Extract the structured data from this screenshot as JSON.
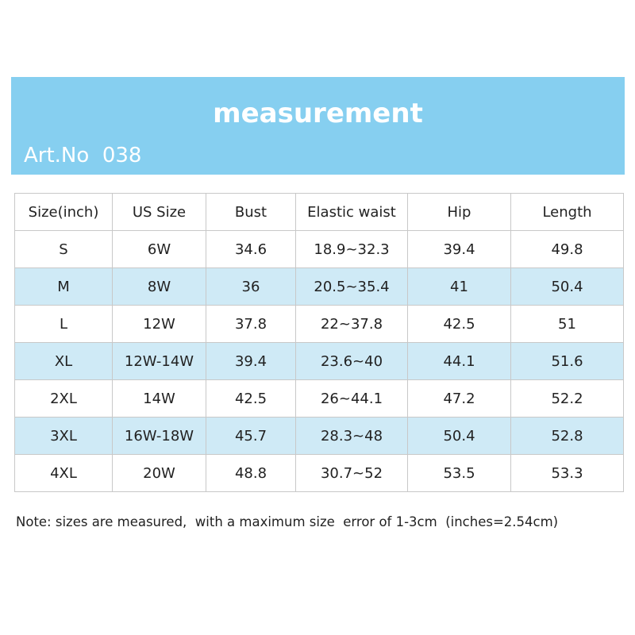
{
  "header": {
    "title": "measurement",
    "art_no": "Art.No  038"
  },
  "table": {
    "columns": [
      "Size(inch)",
      "US Size",
      "Bust",
      "Elastic waist",
      "Hip",
      "Length"
    ],
    "rows": [
      [
        "S",
        "6W",
        "34.6",
        "18.9~32.3",
        "39.4",
        "49.8"
      ],
      [
        "M",
        "8W",
        "36",
        "20.5~35.4",
        "41",
        "50.4"
      ],
      [
        "L",
        "12W",
        "37.8",
        "22~37.8",
        "42.5",
        "51"
      ],
      [
        "XL",
        "12W-14W",
        "39.4",
        "23.6~40",
        "44.1",
        "51.6"
      ],
      [
        "2XL",
        "14W",
        "42.5",
        "26~44.1",
        "47.2",
        "52.2"
      ],
      [
        "3XL",
        "16W-18W",
        "45.7",
        "28.3~48",
        "50.4",
        "52.8"
      ],
      [
        "4XL",
        "20W",
        "48.8",
        "30.7~52",
        "53.5",
        "53.3"
      ]
    ]
  },
  "note": "Note: sizes are measured,  with a maximum size  error of 1-3cm  (inches=2.54cm)"
}
